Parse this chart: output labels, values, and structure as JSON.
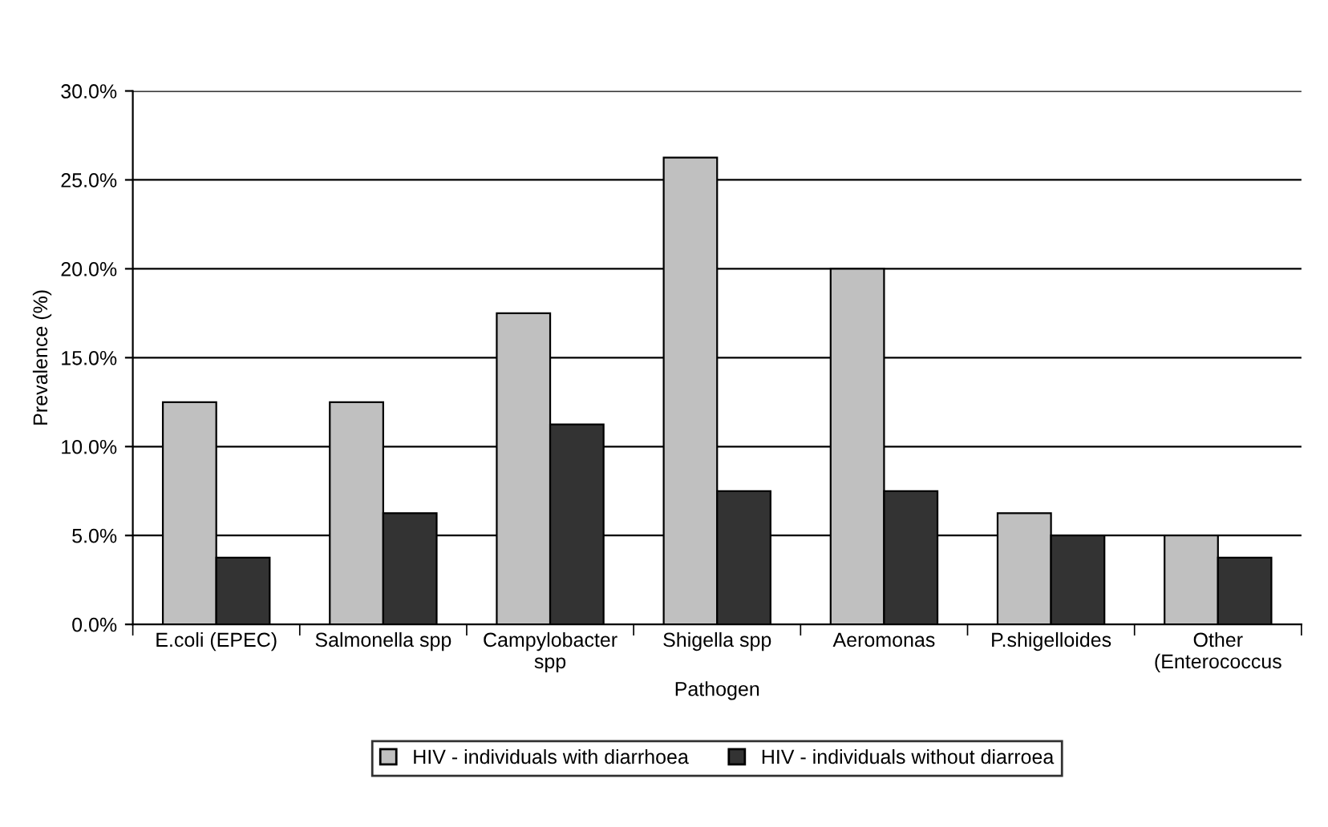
{
  "chart_data": {
    "type": "bar",
    "xlabel": "Pathogen",
    "ylabel": "Prevalence (%)",
    "categories": [
      "E.coli (EPEC)",
      "Salmonella spp",
      "Campylobacter spp",
      "Shigella spp",
      "Aeromonas",
      "P.shigelloides",
      "Other (Enterococcus"
    ],
    "series": [
      {
        "name": "HIV - individuals with diarrhoea",
        "color": "#c0c0c0",
        "values": [
          12.5,
          12.5,
          17.5,
          26.25,
          20.0,
          6.25,
          5.0
        ]
      },
      {
        "name": "HIV - individuals without diarroea",
        "color": "#333333",
        "values": [
          3.75,
          6.25,
          11.25,
          7.5,
          7.5,
          5.0,
          3.75
        ]
      }
    ],
    "ylim": [
      0,
      30
    ],
    "yticks": [
      {
        "value": 0,
        "label": "0.0%"
      },
      {
        "value": 5,
        "label": "5.0%"
      },
      {
        "value": 10,
        "label": "10.0%"
      },
      {
        "value": 15,
        "label": "15.0%"
      },
      {
        "value": 20,
        "label": "20.0%"
      },
      {
        "value": 25,
        "label": "25.0%"
      },
      {
        "value": 30,
        "label": "30.0%"
      }
    ],
    "grid": "y",
    "legend": "bottom"
  }
}
